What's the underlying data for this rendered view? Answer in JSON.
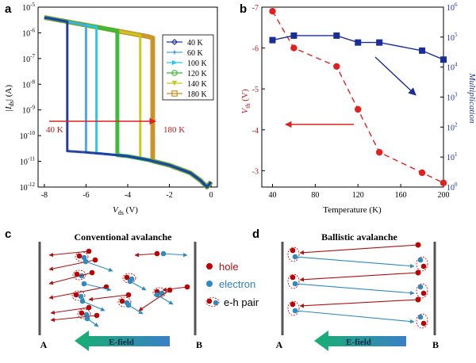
{
  "panels": {
    "a": "a",
    "b": "b",
    "c": "c",
    "d": "d"
  },
  "colors": {
    "hole": "#c00000",
    "electron": "#2e8bc0",
    "arrow_red": "#e02020",
    "navy": "#1a2e9a",
    "temp_red": "#e12020"
  },
  "chart_data": [
    {
      "type": "line",
      "panel": "a",
      "xlabel_main": "V",
      "xlabel_sub": "ds",
      "xlabel_unit": " (V)",
      "ylabel_main": "|I",
      "ylabel_sub": "ds",
      "ylabel_unit": "| (A)",
      "xlim": [
        -8.3,
        0.3
      ],
      "ylim_log10": [
        -12,
        -5
      ],
      "y_scale": "log",
      "xticks": [
        "-8",
        "-6",
        "-4",
        "-2",
        "0"
      ],
      "xtick_values": [
        -8,
        -6,
        -4,
        -2,
        0
      ],
      "yticks": [
        {
          "base": "10",
          "exp": "-5"
        },
        {
          "base": "10",
          "exp": "-6"
        },
        {
          "base": "10",
          "exp": "-7"
        },
        {
          "base": "10",
          "exp": "-8"
        },
        {
          "base": "10",
          "exp": "-9"
        },
        {
          "base": "10",
          "exp": "-10"
        },
        {
          "base": "10",
          "exp": "-11"
        },
        {
          "base": "10",
          "exp": "-12"
        }
      ],
      "ytick_values": [
        -5,
        -6,
        -7,
        -8,
        -9,
        -10,
        -11,
        -12
      ],
      "legend_position": "right",
      "series": [
        {
          "name": "40 K",
          "color": "#1f3a9e",
          "marker": "diamond",
          "switch_v": -6.9
        },
        {
          "name": "60 K",
          "color": "#4aa8e0",
          "marker": "star",
          "switch_v": -6.0
        },
        {
          "name": "100 K",
          "color": "#28c8e8",
          "marker": "triangle-right",
          "switch_v": -5.5
        },
        {
          "name": "120 K",
          "color": "#38b838",
          "marker": "circle",
          "switch_v": -4.5
        },
        {
          "name": "140 K",
          "color": "#c8c820",
          "marker": "triangle-down",
          "switch_v": -3.4
        },
        {
          "name": "180 K",
          "color": "#c89020",
          "marker": "square",
          "switch_v": -2.8
        }
      ],
      "upper_branch": {
        "x": [
          -8.0,
          -7.0,
          -6.0,
          -5.0,
          -4.0,
          -3.0,
          -2.8
        ],
        "log10_y": [
          -5.4,
          -5.55,
          -5.7,
          -5.85,
          -6.0,
          -6.15,
          -6.2
        ]
      },
      "lower_branch": {
        "x": [
          -6.9,
          -6.0,
          -5.0,
          -4.0,
          -3.0,
          -2.0,
          -1.0,
          -0.5,
          -0.2,
          0.0
        ],
        "log10_y": [
          -10.6,
          -10.65,
          -10.72,
          -10.8,
          -10.95,
          -11.15,
          -11.45,
          -11.75,
          -12.0,
          -11.8
        ]
      },
      "arrow_label_left": "40 K",
      "arrow_label_right": "180 K"
    },
    {
      "type": "line",
      "panel": "b",
      "xlabel": "Temperature (K)",
      "ylabel_left_main": "V",
      "ylabel_left_sub": "th",
      "ylabel_left_unit": " (V)",
      "ylabel_right": "Multiplication",
      "xlim": [
        30,
        200
      ],
      "xticks": [
        "40",
        "80",
        "120",
        "160",
        "200"
      ],
      "xtick_values": [
        40,
        80,
        120,
        160,
        200
      ],
      "ylim_left": [
        -7,
        -2.6
      ],
      "yticks_left": [
        "-7",
        "-6",
        "-5",
        "-4",
        "-3"
      ],
      "ytick_left_values": [
        -7,
        -6,
        -5,
        -4,
        -3
      ],
      "y_right_scale": "log",
      "ylim_right_log10": [
        0,
        6
      ],
      "yticks_right": [
        {
          "base": "10",
          "exp": "0"
        },
        {
          "base": "10",
          "exp": "1"
        },
        {
          "base": "10",
          "exp": "2"
        },
        {
          "base": "10",
          "exp": "3"
        },
        {
          "base": "10",
          "exp": "4"
        },
        {
          "base": "10",
          "exp": "5"
        },
        {
          "base": "10",
          "exp": "6"
        }
      ],
      "ytick_right_values": [
        0,
        1,
        2,
        3,
        4,
        5,
        6
      ],
      "series": [
        {
          "axis": "left",
          "color": "#e12020",
          "style": "dashed",
          "marker": "circle",
          "x": [
            40,
            60,
            100,
            120,
            140,
            180,
            200
          ],
          "y": [
            -6.9,
            -6.0,
            -5.55,
            -4.5,
            -3.45,
            -2.95,
            -2.7
          ]
        },
        {
          "axis": "right",
          "color": "#1a2e9a",
          "style": "solid",
          "marker": "square",
          "x": [
            40,
            60,
            100,
            120,
            140,
            180,
            200
          ],
          "log10_y": [
            4.9,
            5.05,
            5.05,
            4.82,
            4.82,
            4.55,
            4.25
          ]
        }
      ]
    }
  ],
  "panel_c": {
    "title": "Conventional avalanche",
    "left_plate": "A",
    "right_plate": "B",
    "field_label": "E-field"
  },
  "panel_d": {
    "title": "Ballistic avalanche",
    "left_plate": "A",
    "right_plate": "B",
    "field_label": "E-field"
  },
  "legend_cd": {
    "hole": "hole",
    "electron": "electron",
    "pair": "e-h pair"
  }
}
